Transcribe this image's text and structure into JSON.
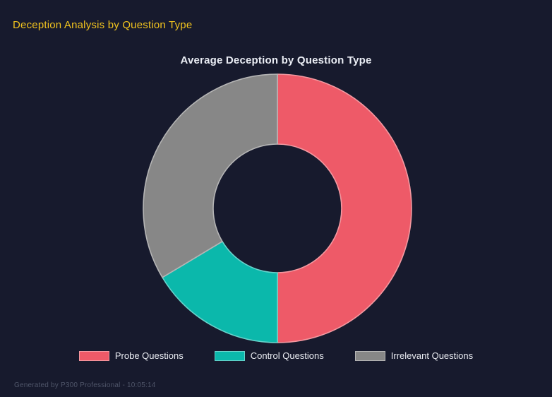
{
  "page": {
    "title": "Deception Analysis by Question Type",
    "title_color": "#f2c41e",
    "background_color": "#171a2d",
    "footer": "Generated by P300 Professional - 10:05:14"
  },
  "chart_data": {
    "type": "pie",
    "subtype": "donut",
    "title": "Average Deception by Question Type",
    "labels": [
      "Probe Questions",
      "Control Questions",
      "Irrelevant Questions"
    ],
    "values": [
      50,
      16.4,
      33.6
    ],
    "values_note": "estimated share of circle in percent; no numeric labels shown in chart",
    "colors": [
      "#ee5a68",
      "#0bb8ab",
      "#878787"
    ],
    "start_angle_deg": 0,
    "direction": "clockwise",
    "cutout_ratio": 0.48,
    "legend_position": "bottom"
  }
}
